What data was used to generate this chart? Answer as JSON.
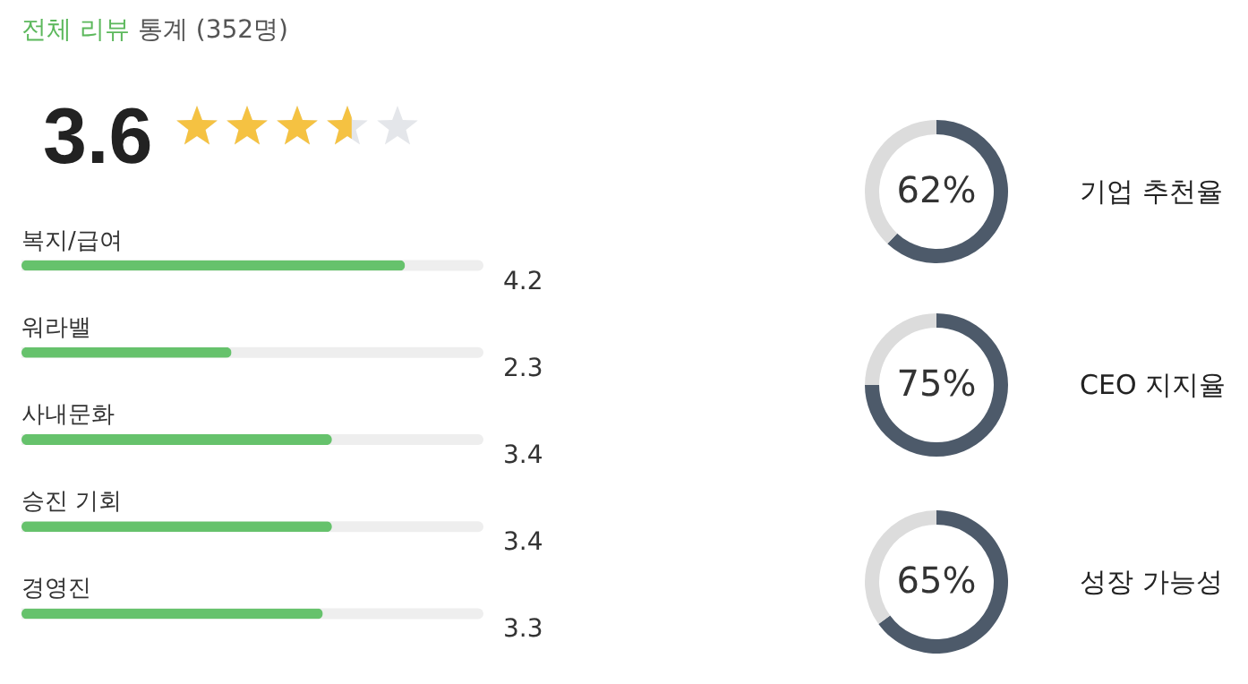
{
  "chart_data": [
    {
      "type": "other",
      "title": "전체 리뷰",
      "subtitle": "통계 (352명)",
      "values": [
        3.6
      ],
      "data_labels": true,
      "color": "#5cb85c"
    },
    {
      "type": "bar",
      "orientation": "horizontal",
      "categories": [
        "복지/급여",
        "워라밸",
        "사내문화",
        "승진 기회",
        "경영진"
      ],
      "values": [
        4.2,
        2.3,
        3.4,
        3.4,
        3.3
      ],
      "color": "#66c26c",
      "xlim": [
        0,
        5
      ],
      "data_labels": true,
      "tick_labels": false
    },
    {
      "type": "donut",
      "title": "기업 추천율",
      "categories": [
        null,
        null
      ],
      "values": [
        62,
        38
      ],
      "colors": [
        "#4d5a6a",
        "#dcdcdc"
      ],
      "value_labels": [
        "62%",
        null
      ]
    },
    {
      "type": "donut",
      "title": "CEO 지지율",
      "categories": [
        null,
        null
      ],
      "values": [
        75,
        25
      ],
      "colors": [
        "#4d5a6a",
        "#dcdcdc"
      ],
      "value_labels": [
        "75%",
        null
      ]
    },
    {
      "type": "donut",
      "title": "성장 가능성",
      "categories": [
        null,
        null
      ],
      "values": [
        65,
        35
      ],
      "colors": [
        "#4d5a6a",
        "#dcdcdc"
      ],
      "value_labels": [
        "65%",
        null
      ]
    }
  ]
}
